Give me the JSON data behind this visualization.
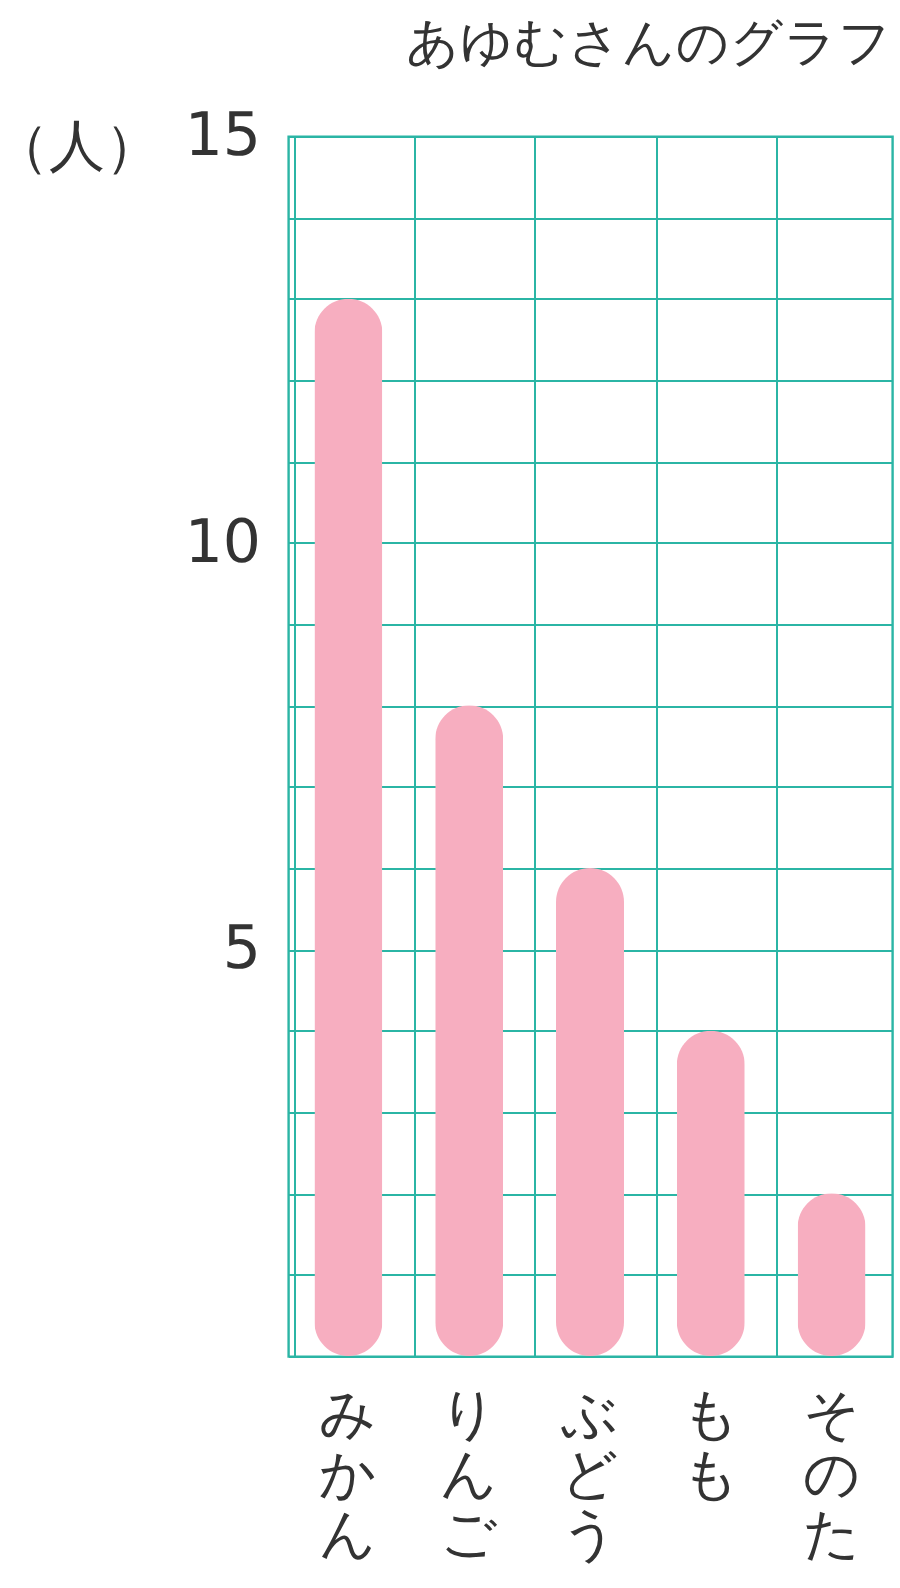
{
  "chart_data": {
    "type": "bar",
    "title": "あゆむさんのグラフ",
    "ylabel": "（人）",
    "categories": [
      "みかん",
      "りんご",
      "ぶどう",
      "もも",
      "そのた"
    ],
    "values": [
      13,
      8,
      6,
      4,
      2
    ],
    "color": "#f7aec0",
    "ylim": [
      0,
      15
    ],
    "yticks": [
      {
        "value": 0,
        "label": null
      },
      {
        "value": 1,
        "label": null
      },
      {
        "value": 2,
        "label": null
      },
      {
        "value": 3,
        "label": null
      },
      {
        "value": 4,
        "label": null
      },
      5,
      {
        "value": 6,
        "label": null
      },
      {
        "value": 7,
        "label": null
      },
      {
        "value": 8,
        "label": null
      },
      {
        "value": 9,
        "label": null
      },
      10,
      {
        "value": 11,
        "label": null
      },
      {
        "value": 12,
        "label": null
      },
      {
        "value": 13,
        "label": null
      },
      {
        "value": 14,
        "label": null
      },
      15
    ],
    "grid": true
  }
}
